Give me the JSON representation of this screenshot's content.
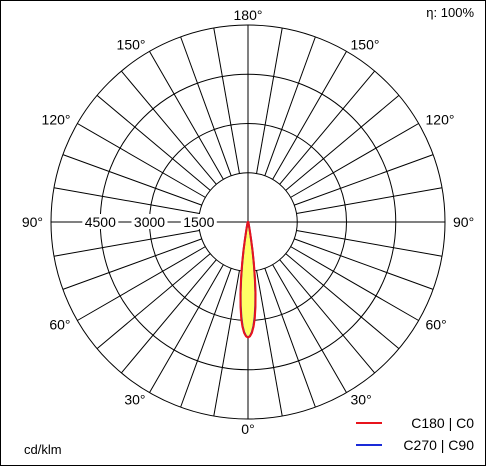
{
  "efficiency": "η: 100%",
  "unit": "cd/klm",
  "chart_data": {
    "type": "polar",
    "angle_labels": [
      {
        "deg": 180,
        "label": "180°"
      },
      {
        "deg": 150,
        "label": "150°",
        "side": "left"
      },
      {
        "deg": 150,
        "label": "150°",
        "side": "right"
      },
      {
        "deg": 120,
        "label": "120°",
        "side": "left"
      },
      {
        "deg": 120,
        "label": "120°",
        "side": "right"
      },
      {
        "deg": 90,
        "label": "90°",
        "side": "left"
      },
      {
        "deg": 90,
        "label": "90°",
        "side": "right"
      },
      {
        "deg": 60,
        "label": "60°",
        "side": "left"
      },
      {
        "deg": 60,
        "label": "60°",
        "side": "right"
      },
      {
        "deg": 30,
        "label": "30°",
        "side": "left"
      },
      {
        "deg": 30,
        "label": "30°",
        "side": "right"
      },
      {
        "deg": 0,
        "label": "0°"
      }
    ],
    "radial_ticks": [
      {
        "value": 1500,
        "label": "1500"
      },
      {
        "value": 3000,
        "label": "3000"
      },
      {
        "value": 4500,
        "label": "4500"
      }
    ],
    "rmax": 6000,
    "inner_circle_value": 1500,
    "series": [
      {
        "name": "C180 | C0",
        "color": "#e8141c",
        "fill": "#ffff66",
        "points": [
          [
            0,
            3520
          ],
          [
            1,
            3480
          ],
          [
            2,
            3380
          ],
          [
            3,
            3200
          ],
          [
            4,
            2950
          ],
          [
            5,
            2600
          ],
          [
            6,
            2200
          ],
          [
            7,
            1750
          ],
          [
            8,
            1300
          ],
          [
            9,
            900
          ],
          [
            10,
            560
          ],
          [
            12,
            250
          ],
          [
            15,
            120
          ],
          [
            20,
            60
          ],
          [
            30,
            30
          ],
          [
            45,
            20
          ],
          [
            60,
            15
          ],
          [
            75,
            12
          ],
          [
            85,
            10
          ],
          [
            90,
            0
          ]
        ]
      },
      {
        "name": "C270 | C90",
        "color": "#1a2bd8",
        "points": [
          [
            0,
            3520
          ],
          [
            1,
            3470
          ],
          [
            2,
            3360
          ],
          [
            3,
            3170
          ],
          [
            4,
            2900
          ],
          [
            5,
            2550
          ],
          [
            6,
            2150
          ],
          [
            7,
            1700
          ],
          [
            8,
            1250
          ],
          [
            9,
            860
          ],
          [
            10,
            520
          ],
          [
            12,
            230
          ],
          [
            15,
            110
          ],
          [
            20,
            55
          ],
          [
            30,
            25
          ],
          [
            45,
            18
          ],
          [
            60,
            14
          ],
          [
            75,
            10
          ],
          [
            85,
            8
          ],
          [
            90,
            0
          ]
        ]
      }
    ]
  }
}
